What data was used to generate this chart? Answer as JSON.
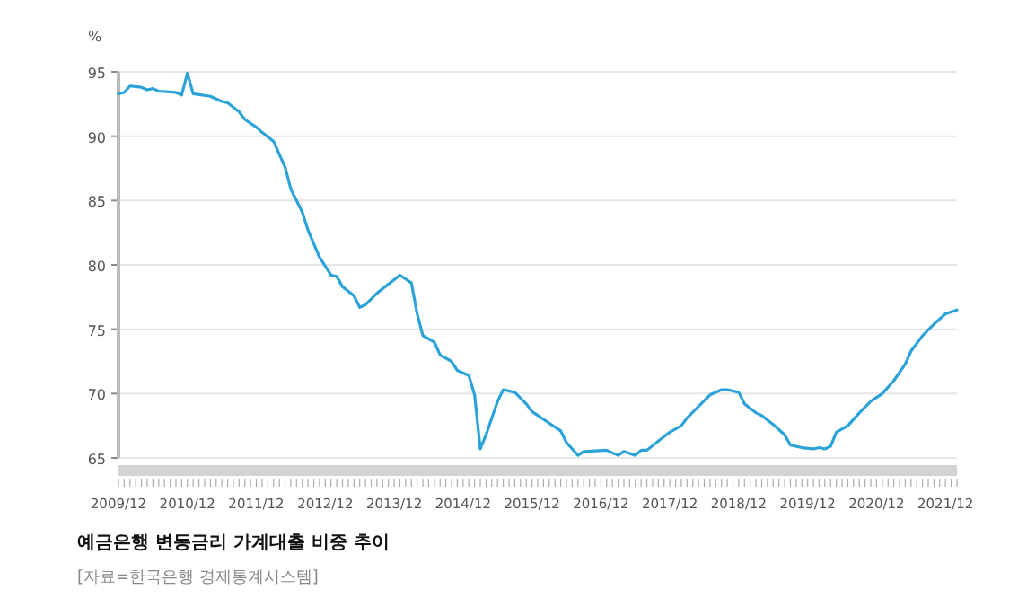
{
  "chart_data": {
    "type": "line",
    "title": "예금은행 변동금리 가계대출 비중 추이",
    "annotations": [
      "[자료=한국은행 경제통계시스템]"
    ],
    "ylabel": "%",
    "x": [
      "2009-12",
      "2010-01",
      "2010-02",
      "2010-04",
      "2010-05",
      "2010-06",
      "2010-07",
      "2010-10",
      "2010-11",
      "2010-12",
      "2011-01",
      "2011-04",
      "2011-06",
      "2011-07",
      "2011-09",
      "2011-10",
      "2011-12",
      "2012-01",
      "2012-03",
      "2012-05",
      "2012-06",
      "2012-08",
      "2012-09",
      "2012-11",
      "2013-01",
      "2013-02",
      "2013-03",
      "2013-05",
      "2013-06",
      "2013-07",
      "2013-09",
      "2013-11",
      "2014-01",
      "2014-03",
      "2014-04",
      "2014-05",
      "2014-07",
      "2014-08",
      "2014-10",
      "2014-11",
      "2015-01",
      "2015-02",
      "2015-03",
      "2015-04",
      "2015-06",
      "2015-07",
      "2015-09",
      "2015-11",
      "2015-12",
      "2016-02",
      "2016-05",
      "2016-06",
      "2016-08",
      "2016-09",
      "2017-01",
      "2017-03",
      "2017-04",
      "2017-06",
      "2017-07",
      "2017-08",
      "2017-10",
      "2017-12",
      "2018-02",
      "2018-03",
      "2018-05",
      "2018-07",
      "2018-09",
      "2018-10",
      "2018-12",
      "2019-01",
      "2019-03",
      "2019-04",
      "2019-06",
      "2019-08",
      "2019-09",
      "2019-11",
      "2020-01",
      "2020-02",
      "2020-03",
      "2020-04",
      "2020-05",
      "2020-07",
      "2020-09",
      "2020-11",
      "2021-01",
      "2021-03",
      "2021-05",
      "2021-06",
      "2021-08",
      "2021-10",
      "2021-12",
      "2022-02"
    ],
    "series": [
      {
        "color": "#2ba3d8",
        "values": [
          93.3,
          93.4,
          93.9,
          93.8,
          93.6,
          93.7,
          93.5,
          93.4,
          93.2,
          94.9,
          93.3,
          93.1,
          92.7,
          92.6,
          91.9,
          91.3,
          90.7,
          90.3,
          89.6,
          87.6,
          85.9,
          84.1,
          82.7,
          80.6,
          79.2,
          79.1,
          78.3,
          77.6,
          76.7,
          76.9,
          77.8,
          78.5,
          79.2,
          78.6,
          76.2,
          74.5,
          74.0,
          73.0,
          72.5,
          71.8,
          71.4,
          69.9,
          65.7,
          66.8,
          69.4,
          70.3,
          70.1,
          69.2,
          68.6,
          68.0,
          67.1,
          66.2,
          65.2,
          65.5,
          65.6,
          65.2,
          65.5,
          65.2,
          65.6,
          65.6,
          66.3,
          67.0,
          67.5,
          68.1,
          69.0,
          69.9,
          70.3,
          70.3,
          70.1,
          69.2,
          68.5,
          68.3,
          67.6,
          66.8,
          66.0,
          65.8,
          65.7,
          65.8,
          65.7,
          65.9,
          67.0,
          67.5,
          68.5,
          69.4,
          70.0,
          71.0,
          72.3,
          73.3,
          74.5,
          75.4,
          76.2,
          76.5
        ]
      }
    ],
    "xlim": [
      "2009-12",
      "2022-02"
    ],
    "xticks": [
      {
        "value": "2009-12",
        "label": "2009/12"
      },
      {
        "value": "2010-12",
        "label": "2010/12"
      },
      {
        "value": "2011-12",
        "label": "2011/12"
      },
      {
        "value": "2012-12",
        "label": "2012/12"
      },
      {
        "value": "2013-12",
        "label": "2013/12"
      },
      {
        "value": "2014-12",
        "label": "2014/12"
      },
      {
        "value": "2015-12",
        "label": "2015/12"
      },
      {
        "value": "2016-12",
        "label": "2016/12"
      },
      {
        "value": "2017-12",
        "label": "2017/12"
      },
      {
        "value": "2018-12",
        "label": "2018/12"
      },
      {
        "value": "2019-12",
        "label": "2019/12"
      },
      {
        "value": "2020-12",
        "label": "2020/12"
      },
      {
        "value": "2021-12",
        "label": "2021/12"
      }
    ],
    "ylim": [
      65,
      95
    ],
    "yticks": [
      65,
      70,
      75,
      80,
      85,
      90,
      95
    ],
    "grid": "y",
    "line_style": "solid",
    "marker": "none"
  }
}
